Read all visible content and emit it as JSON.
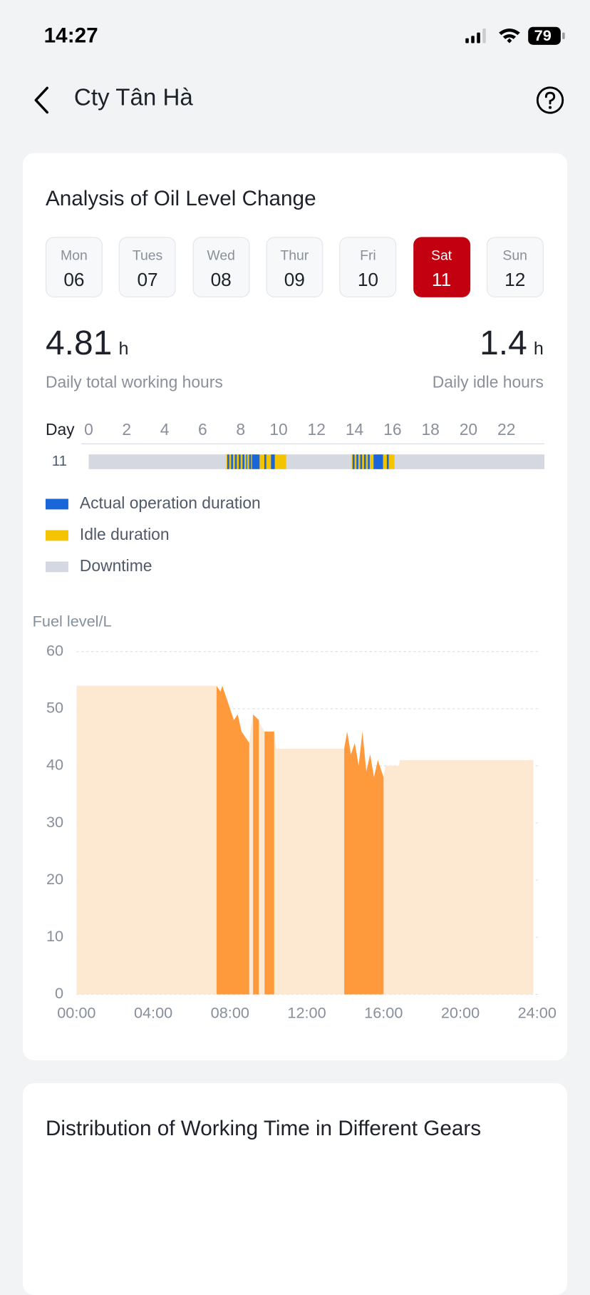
{
  "status_bar": {
    "time": "14:27",
    "battery": "79"
  },
  "header": {
    "title": "Cty Tân Hà"
  },
  "oil_card": {
    "title": "Analysis of Oil Level Change",
    "days": [
      {
        "name": "Mon",
        "date": "06"
      },
      {
        "name": "Tues",
        "date": "07"
      },
      {
        "name": "Wed",
        "date": "08"
      },
      {
        "name": "Thur",
        "date": "09"
      },
      {
        "name": "Fri",
        "date": "10"
      },
      {
        "name": "Sat",
        "date": "11"
      },
      {
        "name": "Sun",
        "date": "12"
      }
    ],
    "selected_day": 5,
    "working_hours": {
      "value": 4.81,
      "unit": "h",
      "label": "Daily total working hours"
    },
    "idle_hours": {
      "value": 1.4,
      "unit": "h",
      "label": "Daily idle hours"
    }
  },
  "chart_data": [
    {
      "type": "timeline",
      "axis_label": "Day",
      "row_label": "11",
      "xlim": [
        0,
        24
      ],
      "xticks": [
        0,
        2,
        4,
        6,
        8,
        10,
        12,
        14,
        16,
        18,
        20,
        22
      ],
      "series": [
        {
          "name": "Actual operation duration",
          "color": "#1a66d9",
          "intervals": [
            [
              7.3,
              7.4
            ],
            [
              7.5,
              7.6
            ],
            [
              7.7,
              7.8
            ],
            [
              7.9,
              8.0
            ],
            [
              8.1,
              8.2
            ],
            [
              8.3,
              8.35
            ],
            [
              8.45,
              8.55
            ],
            [
              8.6,
              9.0
            ],
            [
              9.25,
              9.35
            ],
            [
              9.6,
              9.8
            ],
            [
              13.9,
              14.0
            ],
            [
              14.1,
              14.2
            ],
            [
              14.3,
              14.4
            ],
            [
              14.5,
              14.6
            ],
            [
              14.7,
              14.8
            ],
            [
              15.0,
              15.5
            ],
            [
              15.7,
              15.8
            ]
          ]
        },
        {
          "name": "Idle duration",
          "color": "#f5c400",
          "intervals": [
            [
              7.25,
              8.7
            ],
            [
              9.0,
              10.4
            ],
            [
              13.85,
              16.1
            ]
          ]
        },
        {
          "name": "Downtime",
          "color": "#d5d8e0",
          "intervals": [
            [
              0,
              7.25
            ],
            [
              10.4,
              13.85
            ],
            [
              16.1,
              24
            ]
          ]
        }
      ]
    },
    {
      "type": "area",
      "y_label": "Fuel level/L",
      "xlim": [
        0,
        24
      ],
      "ylim": [
        0,
        60
      ],
      "xticks": [
        {
          "value": 0,
          "label": "00:00"
        },
        {
          "value": 4,
          "label": "04:00"
        },
        {
          "value": 8,
          "label": "08:00"
        },
        {
          "value": 12,
          "label": "12:00"
        },
        {
          "value": 16,
          "label": "16:00"
        },
        {
          "value": 20,
          "label": "20:00"
        },
        {
          "value": 24,
          "label": "24:00"
        }
      ],
      "yticks": [
        0,
        10,
        20,
        30,
        40,
        50,
        60
      ],
      "grid": true,
      "x": [
        0,
        7.3,
        7.5,
        7.6,
        7.8,
        8.0,
        8.2,
        8.4,
        8.6,
        9.0,
        9.1,
        9.2,
        9.5,
        9.6,
        9.8,
        10.3,
        10.4,
        13.95,
        14.1,
        14.3,
        14.5,
        14.7,
        14.9,
        15.1,
        15.3,
        15.5,
        15.7,
        16.0,
        16.1,
        16.8,
        16.85,
        23.8
      ],
      "series": [
        {
          "color": "#fde8d2",
          "values": [
            54,
            54,
            53,
            54,
            52,
            50,
            48,
            49,
            46,
            44,
            47,
            49,
            48,
            47,
            46,
            46,
            43,
            43,
            46,
            42,
            44,
            40,
            46,
            39,
            42,
            38,
            41,
            38,
            40,
            40,
            41,
            41
          ]
        },
        {
          "color": "#ff9a3c",
          "values": [
            null,
            54,
            53,
            54,
            52,
            50,
            48,
            49,
            46,
            44,
            null,
            49,
            48,
            null,
            46,
            46,
            null,
            43,
            46,
            42,
            44,
            40,
            46,
            39,
            42,
            38,
            41,
            38,
            null,
            null,
            null,
            null
          ]
        }
      ]
    }
  ],
  "gears_card": {
    "title": "Distribution of Working Time in Different Gears"
  }
}
